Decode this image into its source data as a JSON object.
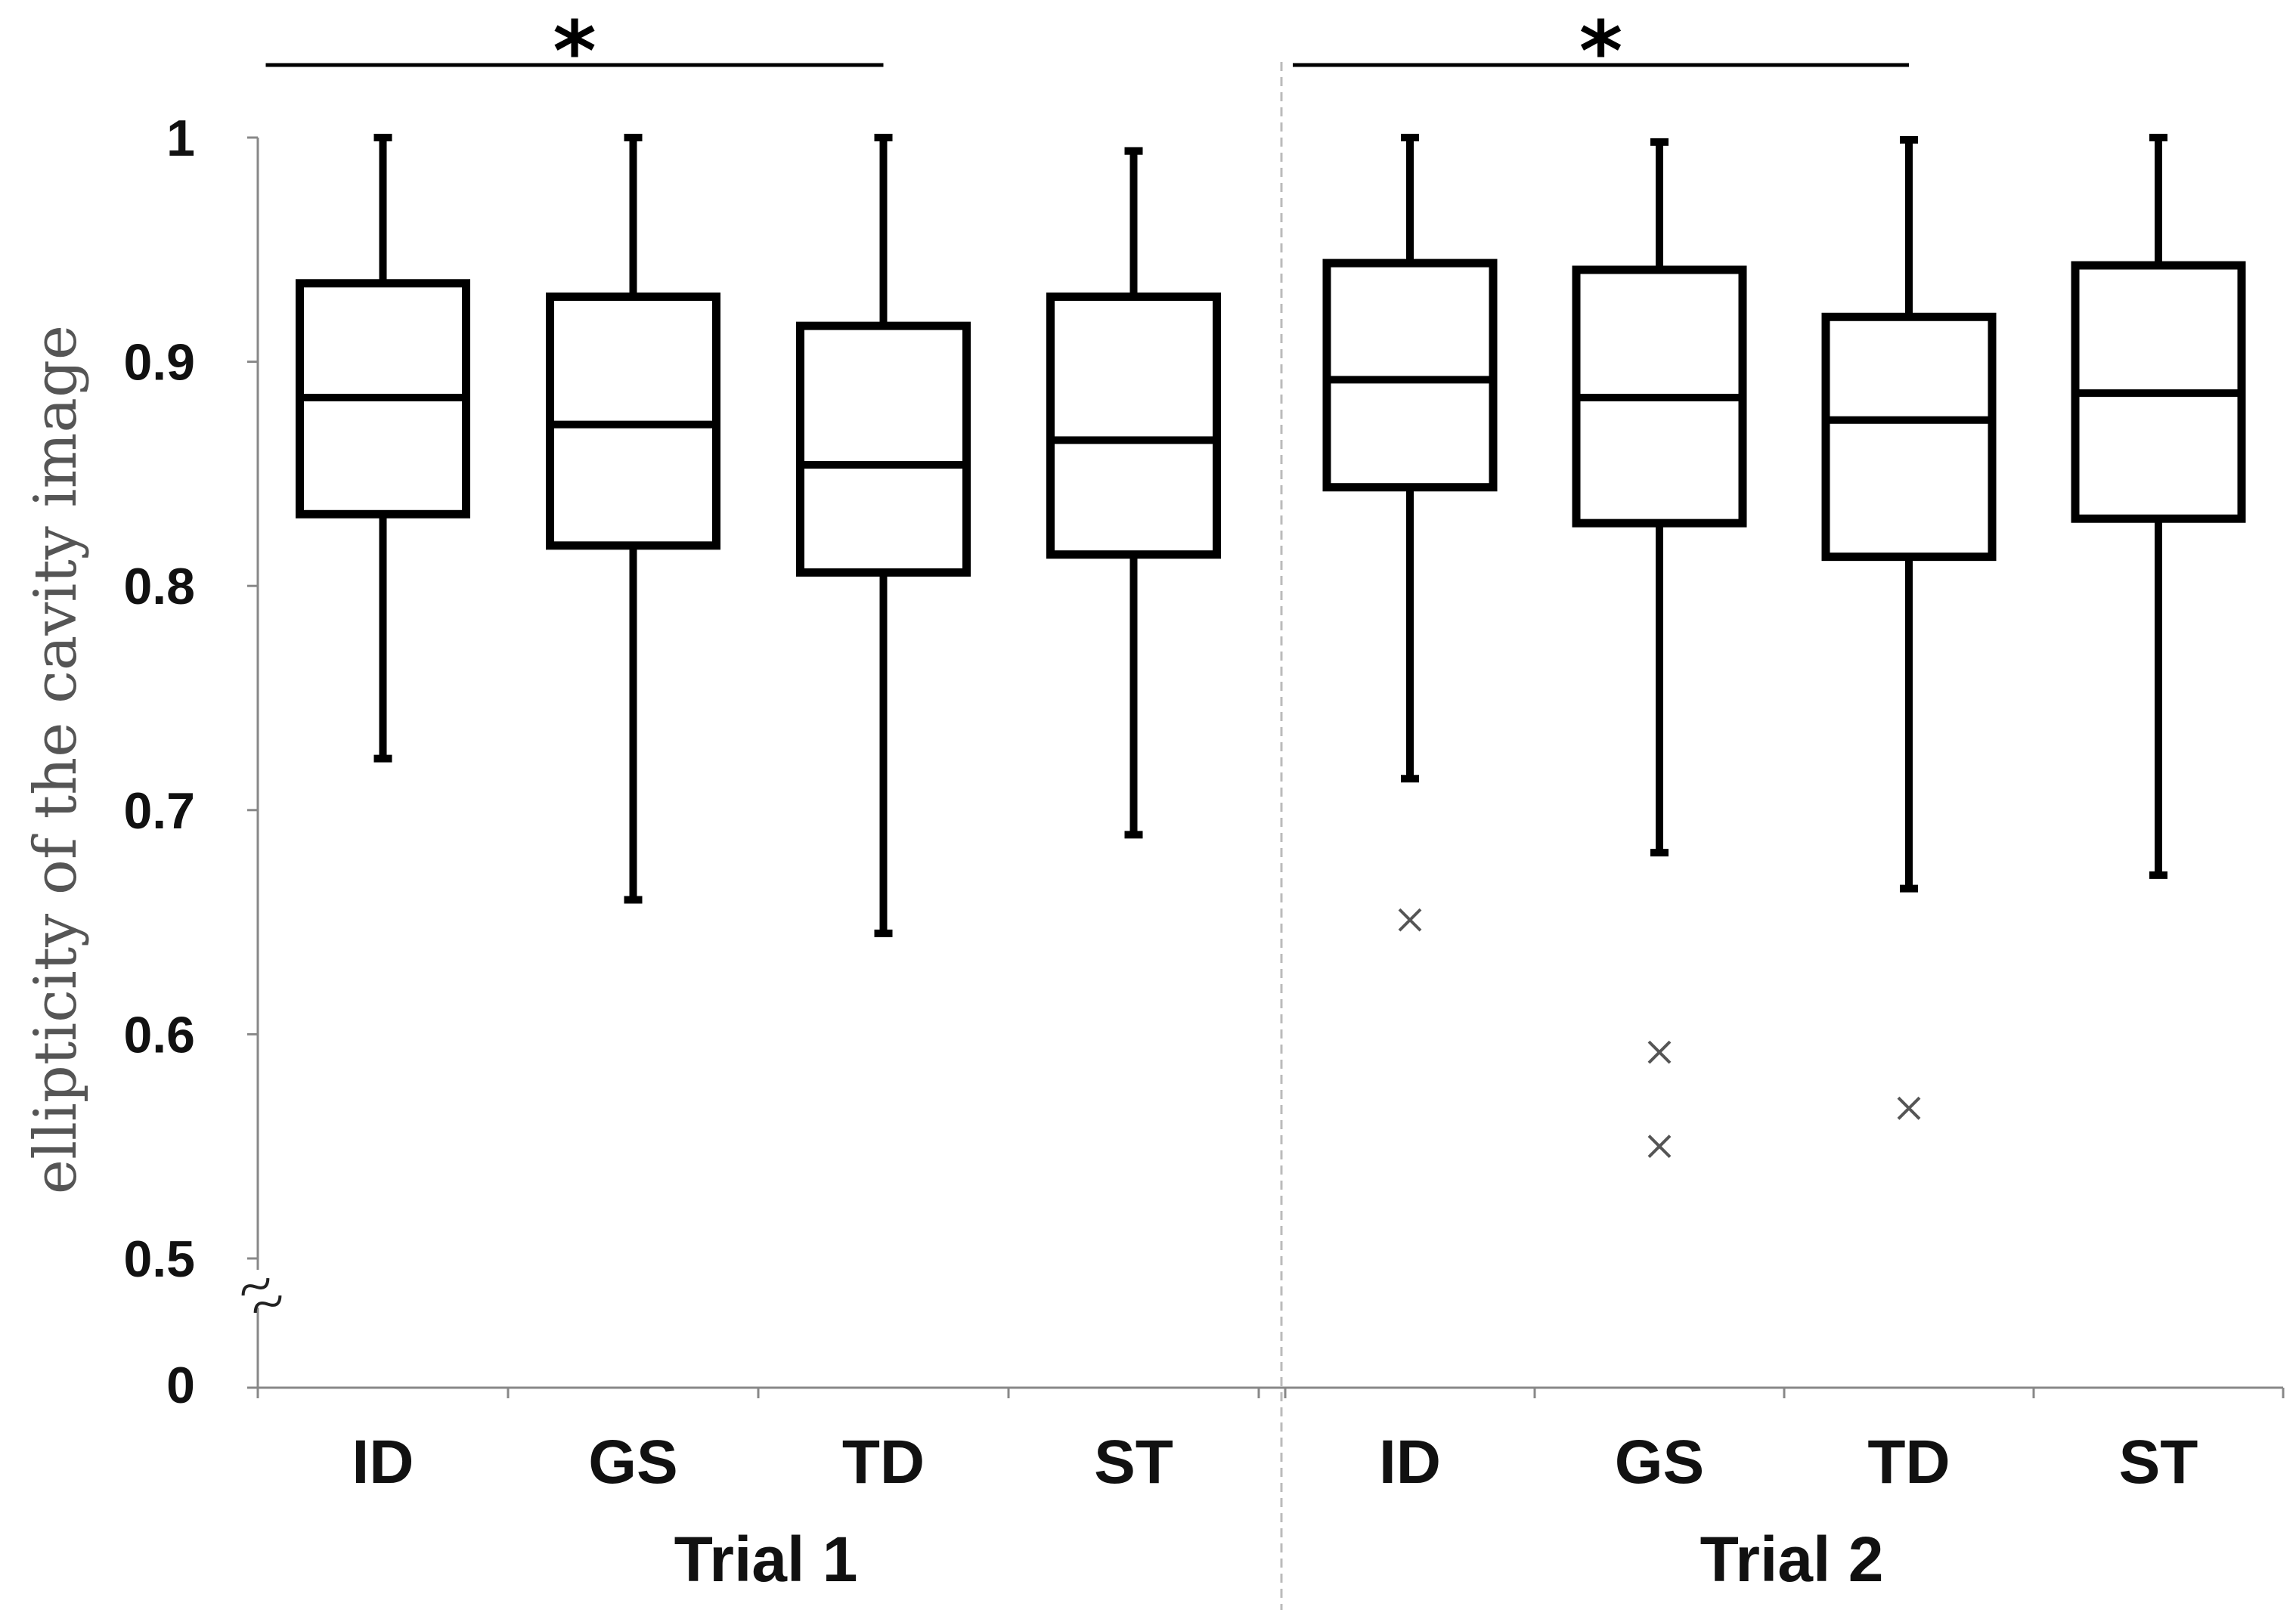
{
  "chart_data": {
    "type": "box",
    "ylabel": "ellipticity of the cavity image",
    "xlabel": "",
    "ylim": [
      0.5,
      1.0
    ],
    "axis_break": true,
    "axis_bottom_label": "0",
    "y_ticks": [
      0.5,
      0.6,
      0.7,
      0.8,
      0.9,
      1.0
    ],
    "y_tick_labels": [
      "0.5",
      "0.6",
      "0.7",
      "0.8",
      "0.9",
      "1"
    ],
    "groups": [
      {
        "name": "Trial 1",
        "categories": [
          "ID",
          "GS",
          "TD",
          "ST"
        ],
        "boxes": [
          {
            "category": "ID",
            "min": 0.723,
            "q1": 0.832,
            "median": 0.884,
            "q3": 0.935,
            "max": 1.0,
            "outliers": []
          },
          {
            "category": "GS",
            "min": 0.66,
            "q1": 0.818,
            "median": 0.872,
            "q3": 0.929,
            "max": 1.0,
            "outliers": []
          },
          {
            "category": "TD",
            "min": 0.645,
            "q1": 0.806,
            "median": 0.854,
            "q3": 0.916,
            "max": 1.0,
            "outliers": []
          },
          {
            "category": "ST",
            "min": 0.689,
            "q1": 0.814,
            "median": 0.865,
            "q3": 0.929,
            "max": 0.994,
            "outliers": []
          }
        ],
        "significance": {
          "from": "ID",
          "to": "TD",
          "label": "*"
        }
      },
      {
        "name": "Trial 2",
        "categories": [
          "ID",
          "GS",
          "TD",
          "ST"
        ],
        "boxes": [
          {
            "category": "ID",
            "min": 0.714,
            "q1": 0.844,
            "median": 0.892,
            "q3": 0.944,
            "max": 1.0,
            "outliers": [
              0.651
            ]
          },
          {
            "category": "GS",
            "min": 0.681,
            "q1": 0.828,
            "median": 0.884,
            "q3": 0.941,
            "max": 0.998,
            "outliers": [
              0.592,
              0.55
            ]
          },
          {
            "category": "TD",
            "min": 0.665,
            "q1": 0.813,
            "median": 0.874,
            "q3": 0.92,
            "max": 0.999,
            "outliers": [
              0.567
            ]
          },
          {
            "category": "ST",
            "min": 0.671,
            "q1": 0.83,
            "median": 0.886,
            "q3": 0.943,
            "max": 1.0,
            "outliers": []
          }
        ],
        "significance": {
          "from": "ID",
          "to": "TD",
          "label": "*"
        }
      }
    ]
  }
}
